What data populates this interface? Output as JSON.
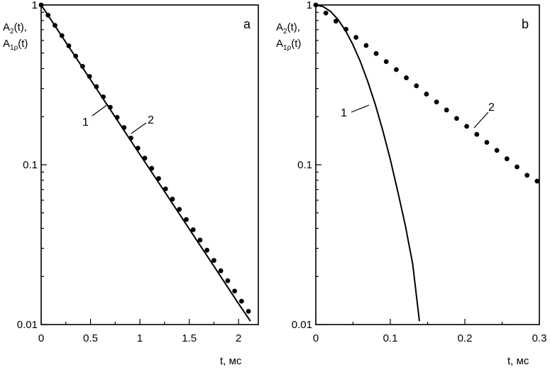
{
  "chart_data": [
    {
      "type": "line",
      "panel_label": "a",
      "ylabel_line1": "A",
      "ylabel_line1_sub": "2",
      "ylabel_line1_tail": "(t),",
      "ylabel_line2": "A",
      "ylabel_line2_sub": "1ρ",
      "ylabel_line2_tail": "(t)",
      "xlabel": "t, мс",
      "xscale": "linear",
      "yscale": "log",
      "xlim": [
        0,
        2.2
      ],
      "ylim": [
        0.01,
        1
      ],
      "xticks": [
        0,
        0.5,
        1,
        1.5,
        2
      ],
      "xtick_labels": [
        "0",
        "0.5",
        "1",
        "1.5",
        "2"
      ],
      "yticks": [
        0.01,
        0.1,
        1
      ],
      "ytick_labels": [
        "0.01",
        "0.1",
        "1"
      ],
      "grid": false,
      "series": [
        {
          "name": "1",
          "style": "solid",
          "x": [
            0,
            0.25,
            0.5,
            0.75,
            1.0,
            1.25,
            1.5,
            1.75,
            2.0,
            2.12
          ],
          "y": [
            1.0,
            0.584,
            0.341,
            0.199,
            0.116,
            0.068,
            0.0397,
            0.0232,
            0.0135,
            0.0105
          ]
        },
        {
          "name": "2",
          "style": "dotted",
          "x": [
            0,
            0.07,
            0.14,
            0.21,
            0.28,
            0.35,
            0.42,
            0.49,
            0.56,
            0.63,
            0.7,
            0.77,
            0.84,
            0.91,
            0.98,
            1.05,
            1.12,
            1.19,
            1.26,
            1.33,
            1.4,
            1.47,
            1.54,
            1.61,
            1.68,
            1.75,
            1.82,
            1.89,
            1.96,
            2.03,
            2.1
          ],
          "y": [
            1.0,
            0.863,
            0.745,
            0.643,
            0.555,
            0.479,
            0.413,
            0.357,
            0.308,
            0.266,
            0.229,
            0.198,
            0.171,
            0.147,
            0.127,
            0.11,
            0.095,
            0.082,
            0.0706,
            0.061,
            0.0526,
            0.0454,
            0.0392,
            0.0338,
            0.0292,
            0.0252,
            0.0217,
            0.0188,
            0.0162,
            0.014,
            0.0121
          ]
        }
      ]
    },
    {
      "type": "line",
      "panel_label": "b",
      "ylabel_line1": "A",
      "ylabel_line1_sub": "2",
      "ylabel_line1_tail": "(t),",
      "ylabel_line2": "A",
      "ylabel_line2_sub": "1ρ",
      "ylabel_line2_tail": "(t)",
      "xlabel": "t, мс",
      "xscale": "linear",
      "yscale": "log",
      "xlim": [
        0,
        0.3
      ],
      "ylim": [
        0.01,
        1
      ],
      "xticks": [
        0,
        0.1,
        0.2,
        0.3
      ],
      "xtick_labels": [
        "0",
        "0.1",
        "0.2",
        "0.3"
      ],
      "yticks": [
        0.01,
        0.1,
        1
      ],
      "ytick_labels": [
        "0.01",
        "0.1",
        "1"
      ],
      "grid": false,
      "series": [
        {
          "name": "1",
          "style": "solid",
          "x": [
            0,
            0.01,
            0.02,
            0.03,
            0.04,
            0.05,
            0.06,
            0.07,
            0.08,
            0.09,
            0.1,
            0.11,
            0.12,
            0.13,
            0.139
          ],
          "y": [
            1.0,
            0.976,
            0.909,
            0.809,
            0.689,
            0.562,
            0.44,
            0.329,
            0.237,
            0.163,
            0.108,
            0.068,
            0.042,
            0.024,
            0.0105
          ]
        },
        {
          "name": "2",
          "style": "dotted",
          "x": [
            0,
            0.0135,
            0.027,
            0.0405,
            0.054,
            0.0675,
            0.081,
            0.0945,
            0.108,
            0.1215,
            0.135,
            0.1485,
            0.162,
            0.1755,
            0.189,
            0.2025,
            0.216,
            0.2295,
            0.243,
            0.2565,
            0.27,
            0.2835,
            0.297
          ],
          "y": [
            1.0,
            0.89,
            0.792,
            0.705,
            0.627,
            0.558,
            0.497,
            0.442,
            0.394,
            0.35,
            0.312,
            0.277,
            0.247,
            0.22,
            0.195,
            0.174,
            0.155,
            0.138,
            0.123,
            0.109,
            0.097,
            0.086,
            0.079
          ]
        }
      ]
    }
  ]
}
